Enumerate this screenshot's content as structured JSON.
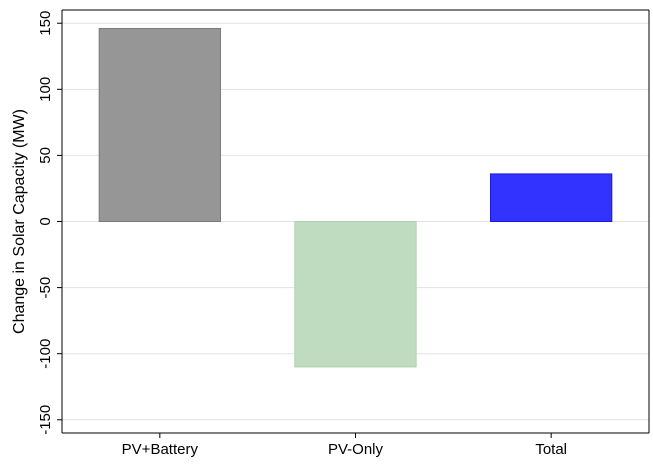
{
  "chart_data": {
    "type": "bar",
    "categories": [
      "PV+Battery",
      "PV-Only",
      "Total"
    ],
    "values": [
      146,
      -110,
      36
    ],
    "colors": [
      "#969696",
      "#c0dcc0",
      "#3333ff"
    ],
    "title": "",
    "xlabel": "",
    "ylabel": "Change in Solar Capacity (MW)",
    "ylim": [
      -160,
      160
    ],
    "yticks": [
      -150,
      -100,
      -50,
      0,
      50,
      100,
      150
    ],
    "grid": true
  }
}
